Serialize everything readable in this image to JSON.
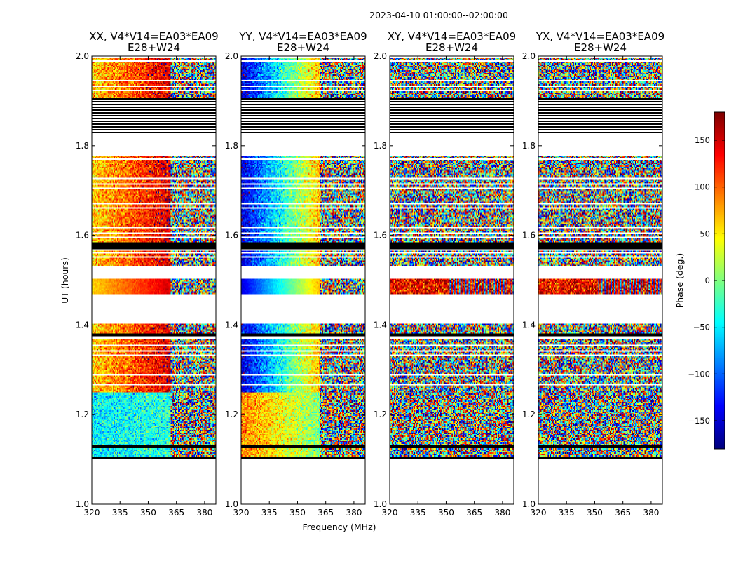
{
  "figure": {
    "suptitle": "2023-04-10  01:00:00--02:00:00",
    "xlabel": "Frequency (MHz)",
    "ylabel": "UT (hours)",
    "colorbar_label": "Phase (deg.)",
    "colorbar_under": ".....",
    "colors": {
      "background": "#ffffff",
      "flag": "#000000",
      "gap": "#ffffff",
      "axis": "#000000"
    }
  },
  "chart_data": [
    {
      "type": "heatmap",
      "panel": "XX",
      "title_line1": "XX, V4*V14=EA03*EA09",
      "title_line2": "E28+W24",
      "xlim": [
        320,
        386
      ],
      "ylim": [
        1.0,
        2.0
      ],
      "xticks": [
        320,
        335,
        350,
        365,
        380
      ],
      "yticks": [
        "1.0",
        "1.2",
        "1.4",
        "1.6",
        "1.8",
        "2.0"
      ],
      "ytick_values": [
        1.0,
        1.2,
        1.4,
        1.6,
        1.8,
        2.0
      ],
      "pattern": "xx",
      "coherent_until_mhz": 362,
      "mean_phase_low": 120,
      "mean_phase_high": 150
    },
    {
      "type": "heatmap",
      "panel": "YY",
      "title_line1": "YY, V4*V14=EA03*EA09",
      "title_line2": "E28+W24",
      "xlim": [
        320,
        386
      ],
      "ylim": [
        1.0,
        2.0
      ],
      "xticks": [
        320,
        335,
        350,
        365,
        380
      ],
      "yticks": [
        "1.0",
        "1.2",
        "1.4",
        "1.6",
        "1.8",
        "2.0"
      ],
      "ytick_values": [
        1.0,
        1.2,
        1.4,
        1.6,
        1.8,
        2.0
      ],
      "pattern": "yy",
      "coherent_until_mhz": 362,
      "mean_phase_low": -160,
      "mean_phase_high": 40
    },
    {
      "type": "heatmap",
      "panel": "XY",
      "title_line1": "XY, V4*V14=EA03*EA09",
      "title_line2": "E28+W24",
      "xlim": [
        320,
        386
      ],
      "ylim": [
        1.0,
        2.0
      ],
      "xticks": [
        320,
        335,
        350,
        365,
        380
      ],
      "yticks": [
        "1.0",
        "1.2",
        "1.4",
        "1.6",
        "1.8",
        "2.0"
      ],
      "ytick_values": [
        1.0,
        1.2,
        1.4,
        1.6,
        1.8,
        2.0
      ],
      "pattern": "noise",
      "coherent_until_mhz": 352,
      "mean_phase_low": 0,
      "mean_phase_high": 0
    },
    {
      "type": "heatmap",
      "panel": "YX",
      "title_line1": "YX, V4*V14=EA03*EA09",
      "title_line2": "E28+W24",
      "xlim": [
        320,
        386
      ],
      "ylim": [
        1.0,
        2.0
      ],
      "xticks": [
        320,
        335,
        350,
        365,
        380
      ],
      "yticks": [
        "1.0",
        "1.2",
        "1.4",
        "1.6",
        "1.8",
        "2.0"
      ],
      "ytick_values": [
        1.0,
        1.2,
        1.4,
        1.6,
        1.8,
        2.0
      ],
      "pattern": "noise",
      "coherent_until_mhz": 352,
      "mean_phase_low": 0,
      "mean_phase_high": 0
    }
  ],
  "colorbar": {
    "range": [
      -180,
      180
    ],
    "ticks": [
      150,
      100,
      50,
      0,
      -50,
      -100,
      -150
    ],
    "tick_labels": [
      "150",
      "100",
      "50",
      "0",
      "−50",
      "−100",
      "−150"
    ],
    "colormap": "jet"
  },
  "time_segments": [
    {
      "start": 1.0,
      "end": 1.1,
      "kind": "gap"
    },
    {
      "start": 1.1,
      "end": 1.106,
      "kind": "flag"
    },
    {
      "start": 1.106,
      "end": 1.125,
      "kind": "data"
    },
    {
      "start": 1.125,
      "end": 1.131,
      "kind": "flag"
    },
    {
      "start": 1.131,
      "end": 1.255,
      "kind": "data"
    },
    {
      "start": 1.255,
      "end": 1.37,
      "kind": "striped"
    },
    {
      "start": 1.37,
      "end": 1.375,
      "kind": "gap"
    },
    {
      "start": 1.375,
      "end": 1.381,
      "kind": "flag"
    },
    {
      "start": 1.381,
      "end": 1.402,
      "kind": "data"
    },
    {
      "start": 1.402,
      "end": 1.47,
      "kind": "gap"
    },
    {
      "start": 1.47,
      "end": 1.502,
      "kind": "smooth"
    },
    {
      "start": 1.502,
      "end": 1.53,
      "kind": "gap"
    },
    {
      "start": 1.53,
      "end": 1.565,
      "kind": "striped"
    },
    {
      "start": 1.565,
      "end": 1.57,
      "kind": "gap"
    },
    {
      "start": 1.57,
      "end": 1.585,
      "kind": "flag"
    },
    {
      "start": 1.585,
      "end": 1.782,
      "kind": "striped"
    },
    {
      "start": 1.782,
      "end": 1.825,
      "kind": "gap"
    },
    {
      "start": 1.825,
      "end": 1.905,
      "kind": "flagstripes"
    },
    {
      "start": 1.905,
      "end": 2.0,
      "kind": "striped"
    }
  ]
}
